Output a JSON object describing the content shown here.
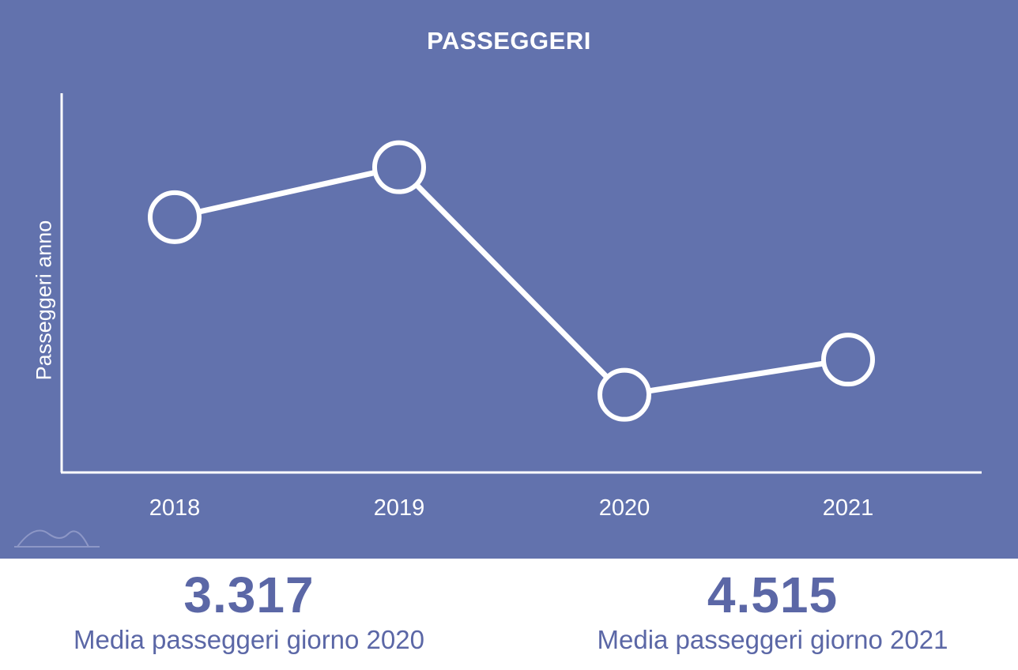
{
  "chart_data": {
    "type": "line",
    "title": "PASSEGGERI",
    "ylabel": "Passeggeri anno",
    "xlabel": "",
    "categories": [
      "2018",
      "2019",
      "2020",
      "2021"
    ],
    "values": [
      1380000,
      1650000,
      420000,
      610000
    ],
    "ylim": [
      0,
      2050000
    ],
    "grid": false,
    "legend": "none",
    "line_color": "#ffffff",
    "marker": "hollow-circle"
  },
  "colors": {
    "panel_background": "#6272ad",
    "stat_text": "#5b67a6"
  },
  "stats": [
    {
      "value": "3.317",
      "label": "Media passeggeri giorno 2020"
    },
    {
      "value": "4.515",
      "label": "Media passeggeri giorno 2021"
    }
  ],
  "logo_icon": "mountain-logo-icon"
}
